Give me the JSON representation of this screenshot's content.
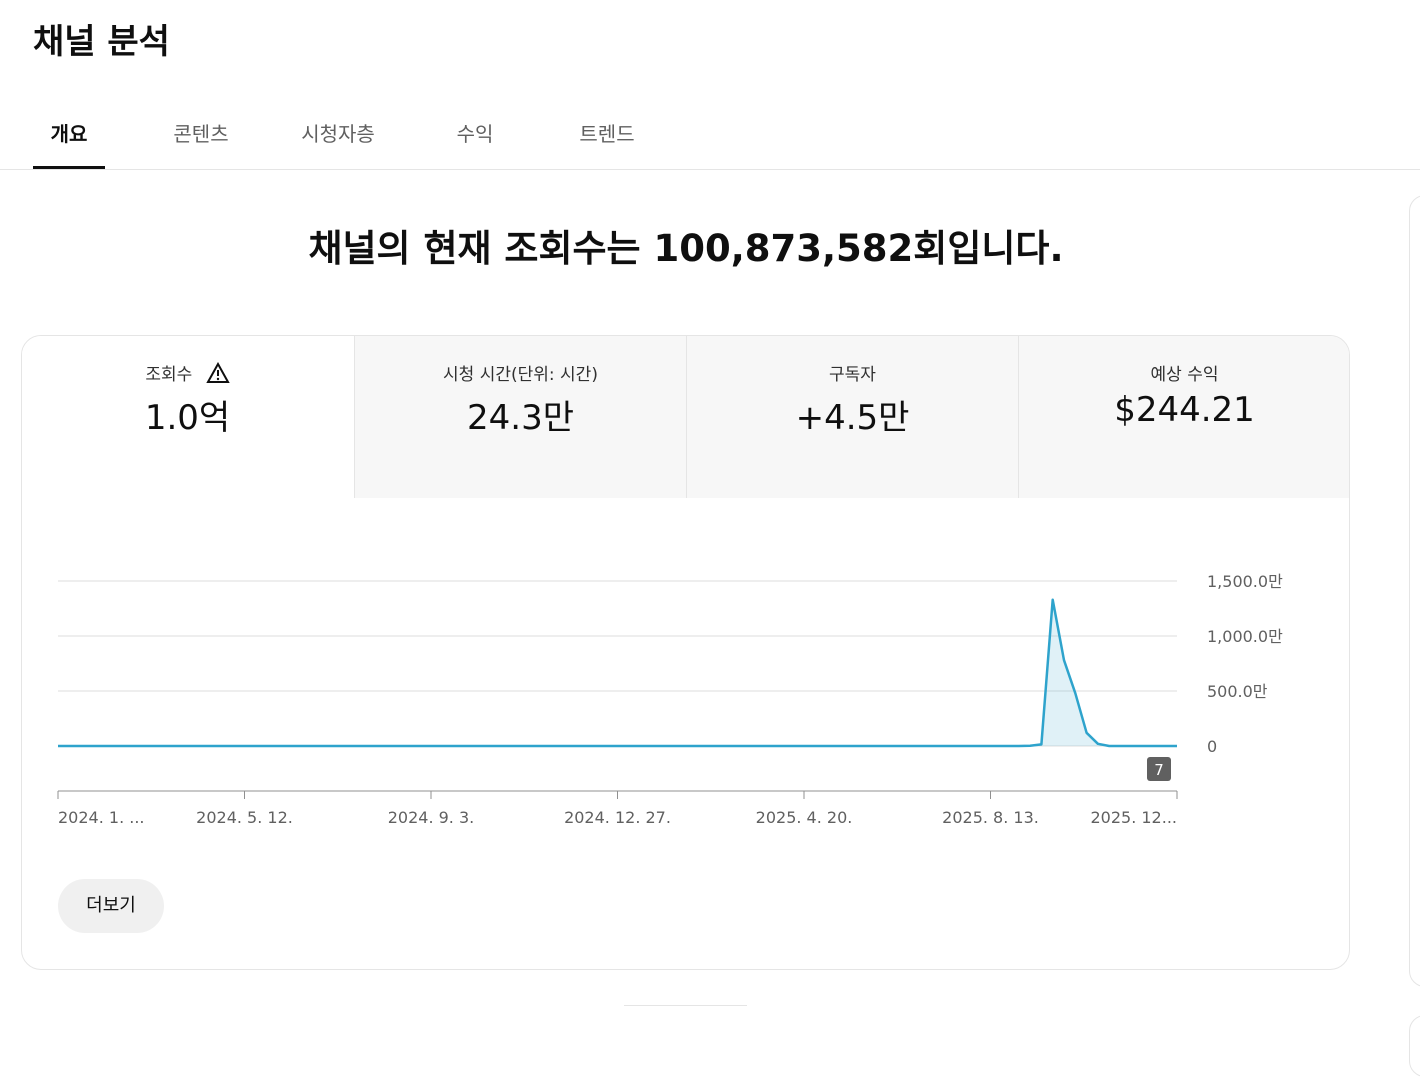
{
  "header": {
    "title": "채널 분석"
  },
  "tabs": [
    "개요",
    "콘텐츠",
    "시청자층",
    "수익",
    "트렌드"
  ],
  "headline": "채널의 현재 조회수는 100,873,582회입니다.",
  "metrics": [
    {
      "label": "조회수",
      "value": "1.0억"
    },
    {
      "label": "시청 시간(단위: 시간)",
      "value": "24.3만"
    },
    {
      "label": "구독자",
      "value": "+4.5만"
    },
    {
      "label": "예상 수익",
      "value": "$244.21"
    }
  ],
  "chart": {
    "type": "line",
    "color": "#2ea3cc",
    "values": [
      0,
      0,
      0,
      0,
      0,
      0,
      0,
      0,
      0,
      0,
      0,
      0,
      0,
      0,
      0,
      0,
      0,
      0,
      0,
      0,
      0,
      0,
      0,
      0,
      0,
      0,
      0,
      0,
      0,
      0,
      0,
      0,
      0,
      0,
      0,
      0,
      0,
      0,
      0,
      0,
      0,
      0,
      0,
      0,
      0,
      0,
      0,
      0,
      0,
      0,
      0,
      0,
      0,
      0,
      0,
      0,
      0,
      0,
      0,
      0,
      0,
      0,
      0,
      0,
      0,
      0,
      0,
      0,
      0,
      0,
      0,
      0,
      0,
      0,
      0,
      0,
      0,
      0,
      0,
      0,
      0,
      0,
      0,
      0,
      0,
      0,
      3,
      15,
      1330,
      780,
      480,
      120,
      20,
      0,
      0,
      0,
      0,
      0,
      0,
      0
    ],
    "xlim": [
      0,
      99
    ],
    "xticks": [
      {
        "value": 0,
        "label": "2024. 1. ..."
      },
      {
        "value": 16.5,
        "label": "2024. 5. 12."
      },
      {
        "value": 33,
        "label": "2024. 9. 3."
      },
      {
        "value": 49.5,
        "label": "2024. 12. 27."
      },
      {
        "value": 66,
        "label": "2025. 4. 20."
      },
      {
        "value": 82.5,
        "label": "2025. 8. 13."
      },
      {
        "value": 99,
        "label": "2025. 12..."
      }
    ],
    "ylim": [
      0,
      1500
    ],
    "yticks": [
      0,
      {
        "value": 500,
        "label": "500.0만"
      },
      {
        "value": 1000,
        "label": "1,000.0만"
      },
      {
        "value": 1500,
        "label": "1,500.0만"
      }
    ],
    "grid": true,
    "badge": "7"
  },
  "button": "더보기"
}
